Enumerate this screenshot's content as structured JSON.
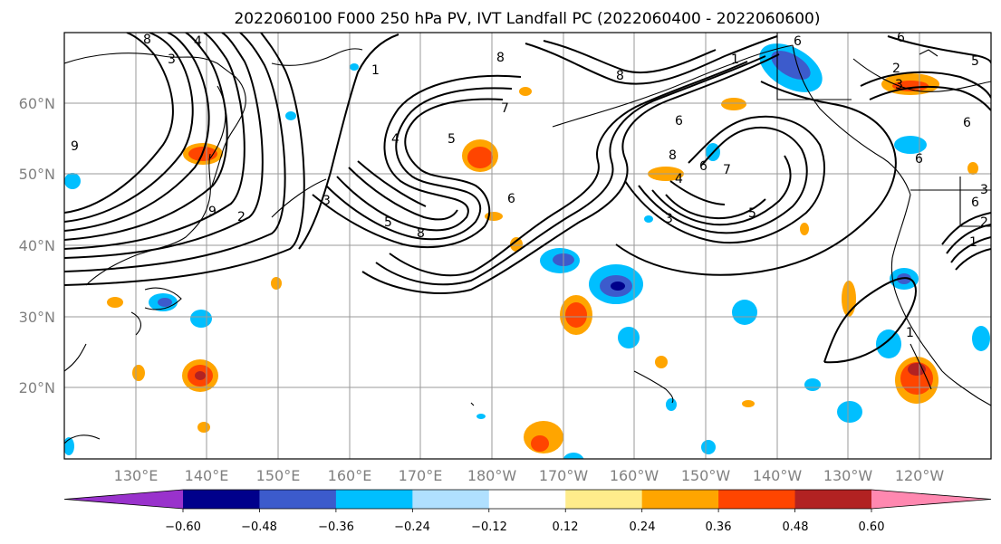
{
  "title": "2022060100 F000 250 hPa PV, IVT Landfall PC (2022060400 - 2022060600)",
  "map": {
    "lat_labels": [
      "60°N",
      "50°N",
      "40°N",
      "30°N",
      "20°N"
    ],
    "lon_labels": [
      "130°E",
      "140°E",
      "150°E",
      "160°E",
      "170°E",
      "180°W",
      "170°W",
      "160°W",
      "150°W",
      "140°W",
      "130°W",
      "120°W"
    ],
    "contour_labels": [
      "8",
      "4",
      "3",
      "9",
      "2",
      "3",
      "1",
      "4",
      "8",
      "7",
      "5",
      "6",
      "8",
      "5",
      "8",
      "6",
      "8",
      "4",
      "6",
      "7",
      "5",
      "3",
      "1",
      "6",
      "6",
      "6",
      "3",
      "2",
      "5",
      "6",
      "1",
      "6",
      "3",
      "2",
      "1",
      "9"
    ]
  },
  "colorbar": {
    "ticks": [
      "−0.60",
      "−0.48",
      "−0.36",
      "−0.24",
      "−0.12",
      "0.12",
      "0.24",
      "0.36",
      "0.48",
      "0.60"
    ],
    "colors": [
      "#9932cc",
      "#00008b",
      "#3c5bcc",
      "#00bfff",
      "#b0e0ff",
      "#ffffff",
      "#ffec8b",
      "#ffa500",
      "#ff4500",
      "#b22222",
      "#ff88b0"
    ]
  }
}
